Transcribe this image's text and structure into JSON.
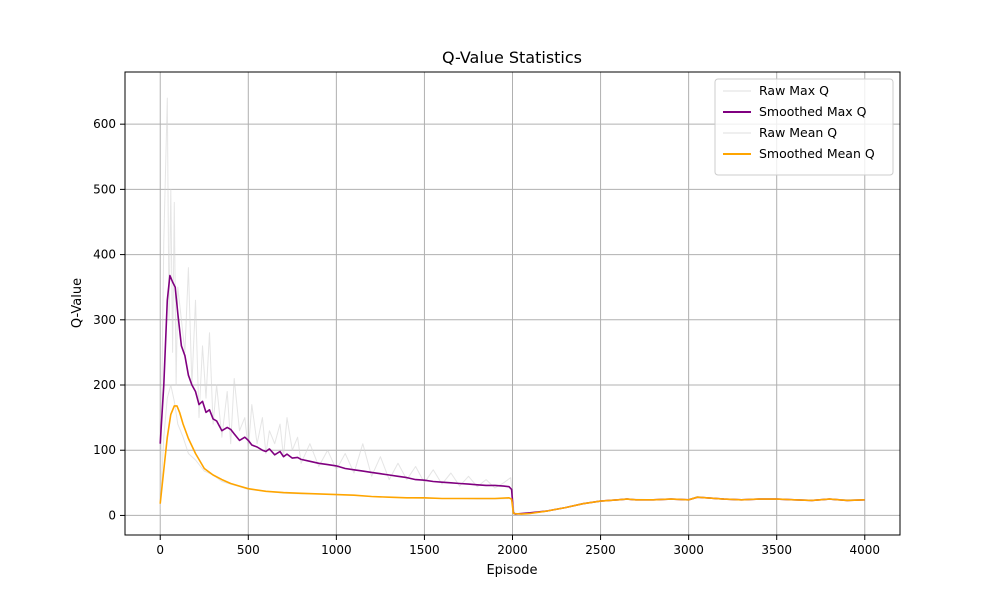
{
  "chart_data": {
    "type": "line",
    "title": "Q-Value Statistics",
    "xlabel": "Episode",
    "ylabel": "Q-Value",
    "xlim": [
      -200,
      4200
    ],
    "ylim": [
      -30,
      680
    ],
    "xticks": [
      0,
      500,
      1000,
      1500,
      2000,
      2500,
      3000,
      3500,
      4000
    ],
    "xtick_labels": [
      "0",
      "500",
      "1000",
      "1500",
      "2000",
      "2500",
      "3000",
      "3500",
      "4000"
    ],
    "yticks": [
      0,
      100,
      200,
      300,
      400,
      500,
      600
    ],
    "ytick_labels": [
      "0",
      "100",
      "200",
      "300",
      "400",
      "500",
      "600"
    ],
    "grid": true,
    "legend_position": "upper right",
    "series": [
      {
        "name": "Raw Max Q",
        "color": "#d3d3d3",
        "x": [
          0,
          20,
          40,
          50,
          60,
          70,
          80,
          90,
          100,
          120,
          140,
          160,
          180,
          200,
          220,
          240,
          260,
          280,
          300,
          320,
          350,
          380,
          400,
          420,
          450,
          480,
          500,
          520,
          550,
          580,
          600,
          620,
          650,
          680,
          700,
          720,
          750,
          780,
          800,
          850,
          900,
          950,
          1000,
          1050,
          1100,
          1150,
          1200,
          1250,
          1300,
          1350,
          1400,
          1450,
          1500,
          1550,
          1600,
          1650,
          1700,
          1750,
          1800,
          1850,
          1900,
          1950,
          1990,
          2000,
          2010,
          2100,
          2200,
          2300,
          2400,
          2500,
          2600,
          2650,
          2700,
          2800,
          2900,
          3000,
          3050,
          3100,
          3200,
          3300,
          3400,
          3500,
          3600,
          3700,
          3800,
          3900,
          4000
        ],
        "values": [
          0,
          420,
          640,
          300,
          500,
          250,
          480,
          200,
          350,
          300,
          250,
          380,
          200,
          330,
          150,
          260,
          180,
          280,
          140,
          200,
          120,
          190,
          110,
          210,
          130,
          150,
          100,
          170,
          110,
          150,
          95,
          130,
          110,
          140,
          90,
          150,
          100,
          120,
          80,
          110,
          75,
          100,
          70,
          95,
          65,
          110,
          60,
          90,
          55,
          80,
          55,
          75,
          50,
          70,
          48,
          65,
          45,
          60,
          44,
          55,
          42,
          50,
          58,
          30,
          2,
          3,
          7,
          12,
          18,
          22,
          24,
          26,
          24,
          24,
          25,
          24,
          29,
          27,
          25,
          24,
          25,
          25,
          24,
          23,
          25,
          24,
          24
        ]
      },
      {
        "name": "Smoothed Max Q",
        "color": "#800080",
        "x": [
          0,
          20,
          40,
          55,
          70,
          85,
          100,
          120,
          140,
          160,
          180,
          200,
          220,
          240,
          260,
          280,
          300,
          320,
          350,
          380,
          400,
          420,
          450,
          480,
          500,
          520,
          550,
          580,
          600,
          620,
          650,
          680,
          700,
          720,
          750,
          780,
          800,
          850,
          900,
          950,
          1000,
          1050,
          1100,
          1150,
          1200,
          1250,
          1300,
          1350,
          1400,
          1450,
          1500,
          1550,
          1600,
          1650,
          1700,
          1750,
          1800,
          1850,
          1900,
          1950,
          1980,
          1995,
          2005,
          2015,
          2050,
          2100,
          2200,
          2300,
          2400,
          2500,
          2600,
          2650,
          2700,
          2800,
          2900,
          3000,
          3050,
          3100,
          3200,
          3300,
          3400,
          3500,
          3600,
          3700,
          3800,
          3900,
          4000
        ],
        "values": [
          110,
          200,
          330,
          368,
          358,
          350,
          310,
          260,
          245,
          215,
          200,
          190,
          170,
          175,
          158,
          162,
          148,
          145,
          130,
          135,
          132,
          125,
          115,
          120,
          115,
          108,
          105,
          100,
          98,
          102,
          93,
          98,
          90,
          94,
          88,
          89,
          86,
          83,
          80,
          78,
          76,
          72,
          70,
          68,
          66,
          64,
          62,
          60,
          58,
          55,
          54,
          52,
          51,
          50,
          49,
          48,
          47,
          46,
          46,
          45,
          44,
          40,
          5,
          2,
          3,
          4,
          7,
          12,
          18,
          22,
          24,
          25,
          24,
          24,
          25,
          24,
          28,
          27,
          25,
          24,
          25,
          25,
          24,
          23,
          25,
          23,
          24
        ]
      },
      {
        "name": "Raw Mean Q",
        "color": "#d3d3d3",
        "x": [
          0,
          20,
          40,
          60,
          80,
          100,
          130,
          160,
          200,
          250,
          300,
          350,
          400,
          450,
          500,
          600,
          700,
          800,
          900,
          1000,
          1100,
          1200,
          1300,
          1400,
          1500,
          1600,
          1700,
          1800,
          1900,
          1990,
          2000,
          2010,
          2100,
          2200,
          2300,
          2400,
          2500,
          2600,
          2700,
          2800,
          2900,
          3000,
          3050,
          3100,
          3200,
          3300,
          3400,
          3500,
          3600,
          3700,
          3800,
          3900,
          4000
        ],
        "values": [
          10,
          120,
          180,
          200,
          175,
          140,
          120,
          95,
          85,
          68,
          62,
          52,
          48,
          44,
          40,
          37,
          34,
          33,
          33,
          32,
          31,
          29,
          28,
          27,
          26,
          26,
          26,
          25,
          25,
          26,
          20,
          2,
          3,
          7,
          12,
          18,
          22,
          24,
          25,
          24,
          25,
          24,
          29,
          27,
          25,
          24,
          25,
          25,
          24,
          23,
          25,
          24,
          24
        ]
      },
      {
        "name": "Smoothed Mean Q",
        "color": "#ffa500",
        "x": [
          0,
          20,
          40,
          60,
          80,
          95,
          110,
          130,
          160,
          200,
          250,
          300,
          350,
          400,
          450,
          500,
          600,
          700,
          800,
          900,
          1000,
          1100,
          1200,
          1300,
          1400,
          1500,
          1600,
          1700,
          1800,
          1900,
          1980,
          1995,
          2005,
          2050,
          2100,
          2200,
          2300,
          2400,
          2500,
          2600,
          2650,
          2700,
          2800,
          2900,
          3000,
          3050,
          3100,
          3200,
          3300,
          3400,
          3500,
          3600,
          3700,
          3800,
          3900,
          4000
        ],
        "values": [
          18,
          70,
          120,
          155,
          168,
          168,
          158,
          140,
          118,
          95,
          72,
          62,
          55,
          49,
          45,
          41,
          37,
          35,
          34,
          33,
          32,
          31,
          29,
          28,
          27,
          27,
          26,
          26,
          26,
          26,
          27,
          25,
          3,
          2,
          3,
          7,
          12,
          18,
          22,
          24,
          25,
          24,
          24,
          25,
          24,
          28,
          27,
          25,
          24,
          25,
          25,
          24,
          23,
          25,
          23,
          24
        ]
      }
    ]
  }
}
